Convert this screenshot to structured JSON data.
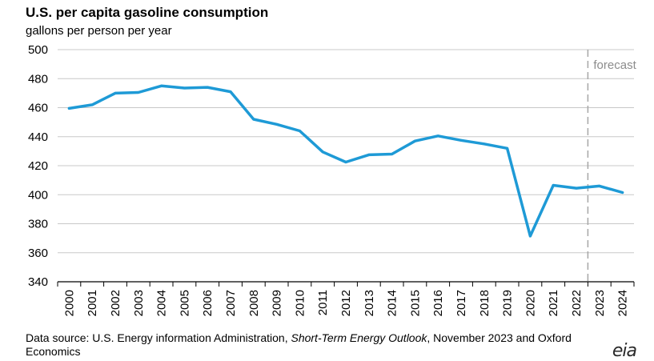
{
  "header": {
    "title": "U.S. per capita gasoline consumption",
    "subtitle": "gallons per person per year"
  },
  "source": {
    "prefix": "Data source: U.S. Energy information Administration, ",
    "publication": "Short-Term Energy Outlook",
    "suffix": ", November 2023 and Oxford Economics"
  },
  "logo": {
    "text": "eia"
  },
  "chart_data": {
    "type": "line",
    "title": "U.S. per capita gasoline consumption",
    "ylabel": "gallons per person per year",
    "xlabel": "",
    "ylim": [
      340,
      500
    ],
    "yticks": [
      340,
      360,
      380,
      400,
      420,
      440,
      460,
      480,
      500
    ],
    "grid": true,
    "forecast_start": 2022.5,
    "forecast_label": "forecast",
    "line_color": "#1e9ad6",
    "x": [
      2000,
      2001,
      2002,
      2003,
      2004,
      2005,
      2006,
      2007,
      2008,
      2009,
      2010,
      2011,
      2012,
      2013,
      2014,
      2015,
      2016,
      2017,
      2018,
      2019,
      2020,
      2021,
      2022,
      2023,
      2024
    ],
    "series": [
      {
        "values": [
          459.5,
          462,
          470,
          470.5,
          475,
          473.5,
          474,
          471,
          452,
          448.5,
          444,
          429.5,
          422.5,
          427.5,
          428,
          437,
          440.5,
          437.5,
          435,
          432,
          371.5,
          406.5,
          404.5,
          406,
          401.5
        ]
      }
    ]
  }
}
